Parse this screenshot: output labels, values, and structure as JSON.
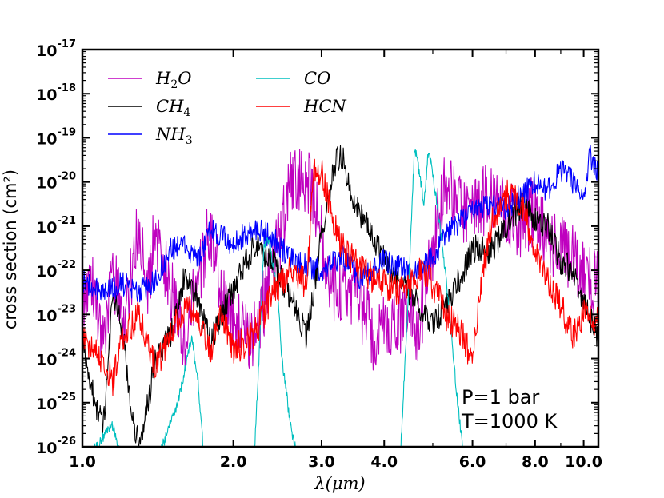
{
  "chart_data": {
    "type": "line",
    "title": "",
    "xlabel": "λ(μm)",
    "ylabel": "cross section (cm²)",
    "xscale": "log",
    "yscale": "log",
    "xlim": [
      1.0,
      10.7
    ],
    "ylim_exp": [
      -26,
      -17
    ],
    "x_ticks": [
      {
        "value": 1.0,
        "label": "1.0"
      },
      {
        "value": 2.0,
        "label": "2.0"
      },
      {
        "value": 3.0,
        "label": "3.0"
      },
      {
        "value": 4.0,
        "label": "4.0"
      },
      {
        "value": 6.0,
        "label": "6.0"
      },
      {
        "value": 8.0,
        "label": "8.0"
      },
      {
        "value": 10.0,
        "label": "10.0"
      }
    ],
    "y_ticks": [
      {
        "exp": -26,
        "base": "10",
        "sup": "-26"
      },
      {
        "exp": -25,
        "base": "10",
        "sup": "-25"
      },
      {
        "exp": -24,
        "base": "10",
        "sup": "-24"
      },
      {
        "exp": -23,
        "base": "10",
        "sup": "-23"
      },
      {
        "exp": -22,
        "base": "10",
        "sup": "-22"
      },
      {
        "exp": -21,
        "base": "10",
        "sup": "-21"
      },
      {
        "exp": -20,
        "base": "10",
        "sup": "-20"
      },
      {
        "exp": -19,
        "base": "10",
        "sup": "-19"
      },
      {
        "exp": -18,
        "base": "10",
        "sup": "-18"
      },
      {
        "exp": -17,
        "base": "10",
        "sup": "-17"
      }
    ],
    "series": [
      {
        "name": "H2O",
        "label": "H",
        "sub": "2",
        "suffix": "O",
        "color": "#bf00bf",
        "noise": 1.0,
        "points": [
          [
            1.0,
            -22.5
          ],
          [
            1.05,
            -22.3
          ],
          [
            1.1,
            -23.8
          ],
          [
            1.15,
            -22.0
          ],
          [
            1.2,
            -23.2
          ],
          [
            1.3,
            -21.0
          ],
          [
            1.35,
            -22.2
          ],
          [
            1.4,
            -21.2
          ],
          [
            1.5,
            -22.5
          ],
          [
            1.6,
            -23.5
          ],
          [
            1.8,
            -21.0
          ],
          [
            1.9,
            -22.5
          ],
          [
            2.0,
            -23.2
          ],
          [
            2.2,
            -23.5
          ],
          [
            2.4,
            -22.0
          ],
          [
            2.6,
            -20.0
          ],
          [
            2.75,
            -19.8
          ],
          [
            2.9,
            -20.3
          ],
          [
            3.1,
            -22.3
          ],
          [
            3.3,
            -22.6
          ],
          [
            3.5,
            -22.5
          ],
          [
            3.8,
            -23.5
          ],
          [
            4.1,
            -23.3
          ],
          [
            4.4,
            -23.0
          ],
          [
            4.7,
            -23.3
          ],
          [
            5.0,
            -21.5
          ],
          [
            5.3,
            -20.0
          ],
          [
            5.6,
            -20.5
          ],
          [
            6.0,
            -20.8
          ],
          [
            6.5,
            -20.2
          ],
          [
            7.0,
            -20.6
          ],
          [
            7.5,
            -21.0
          ],
          [
            8.0,
            -20.6
          ],
          [
            8.5,
            -21.5
          ],
          [
            9.0,
            -21.5
          ],
          [
            10.0,
            -22.0
          ],
          [
            10.7,
            -22.4
          ]
        ]
      },
      {
        "name": "CH4",
        "label": "CH",
        "sub": "4",
        "suffix": "",
        "color": "#000000",
        "noise": 0.4,
        "points": [
          [
            1.0,
            -23.5
          ],
          [
            1.05,
            -24.8
          ],
          [
            1.1,
            -25.6
          ],
          [
            1.15,
            -22.6
          ],
          [
            1.2,
            -23.3
          ],
          [
            1.25,
            -25.2
          ],
          [
            1.3,
            -26.0
          ],
          [
            1.4,
            -24.0
          ],
          [
            1.5,
            -23.5
          ],
          [
            1.6,
            -22.1
          ],
          [
            1.7,
            -22.6
          ],
          [
            1.8,
            -23.6
          ],
          [
            1.9,
            -23.0
          ],
          [
            2.0,
            -22.4
          ],
          [
            2.2,
            -21.4
          ],
          [
            2.4,
            -21.8
          ],
          [
            2.6,
            -22.6
          ],
          [
            2.8,
            -23.5
          ],
          [
            3.0,
            -21.2
          ],
          [
            3.2,
            -19.5
          ],
          [
            3.3,
            -19.4
          ],
          [
            3.5,
            -20.5
          ],
          [
            3.8,
            -21.2
          ],
          [
            4.0,
            -21.8
          ],
          [
            4.5,
            -22.5
          ],
          [
            5.0,
            -23.2
          ],
          [
            5.5,
            -22.5
          ],
          [
            6.0,
            -21.5
          ],
          [
            6.5,
            -21.6
          ],
          [
            7.0,
            -21.0
          ],
          [
            7.5,
            -20.5
          ],
          [
            8.0,
            -20.8
          ],
          [
            8.5,
            -21.0
          ],
          [
            9.0,
            -21.8
          ],
          [
            9.5,
            -22.0
          ],
          [
            10.0,
            -22.8
          ],
          [
            10.7,
            -23.5
          ]
        ]
      },
      {
        "name": "NH3",
        "label": "NH",
        "sub": "3",
        "suffix": "",
        "color": "#0000ff",
        "noise": 0.35,
        "points": [
          [
            1.0,
            -22.2
          ],
          [
            1.05,
            -22.4
          ],
          [
            1.1,
            -22.5
          ],
          [
            1.2,
            -22.3
          ],
          [
            1.3,
            -22.5
          ],
          [
            1.4,
            -22.2
          ],
          [
            1.5,
            -21.5
          ],
          [
            1.6,
            -21.4
          ],
          [
            1.7,
            -21.8
          ],
          [
            1.8,
            -21.1
          ],
          [
            2.0,
            -21.4
          ],
          [
            2.2,
            -21.0
          ],
          [
            2.4,
            -21.3
          ],
          [
            2.6,
            -21.7
          ],
          [
            2.8,
            -21.9
          ],
          [
            3.0,
            -22.0
          ],
          [
            3.3,
            -21.7
          ],
          [
            3.6,
            -22.2
          ],
          [
            4.0,
            -21.8
          ],
          [
            4.5,
            -22.0
          ],
          [
            5.0,
            -21.7
          ],
          [
            5.5,
            -21.0
          ],
          [
            6.0,
            -20.7
          ],
          [
            6.5,
            -20.5
          ],
          [
            7.0,
            -20.6
          ],
          [
            7.5,
            -20.3
          ],
          [
            8.0,
            -20.0
          ],
          [
            8.5,
            -20.2
          ],
          [
            9.0,
            -19.7
          ],
          [
            9.5,
            -20.0
          ],
          [
            10.0,
            -20.3
          ],
          [
            10.3,
            -19.4
          ],
          [
            10.7,
            -19.8
          ]
        ]
      },
      {
        "name": "CO",
        "label": "CO",
        "sub": "",
        "suffix": "",
        "color": "#00bfbf",
        "noise": 0.15,
        "points": [
          [
            1.0,
            -26.4
          ],
          [
            1.15,
            -25.5
          ],
          [
            1.2,
            -26.3
          ],
          [
            1.4,
            -26.4
          ],
          [
            1.55,
            -25.0
          ],
          [
            1.65,
            -23.5
          ],
          [
            1.7,
            -24.5
          ],
          [
            1.75,
            -26.3
          ],
          [
            2.2,
            -26.3
          ],
          [
            2.25,
            -24.0
          ],
          [
            2.3,
            -21.5
          ],
          [
            2.35,
            -21.3
          ],
          [
            2.45,
            -22.5
          ],
          [
            2.5,
            -24.0
          ],
          [
            2.6,
            -25.5
          ],
          [
            2.7,
            -26.4
          ],
          [
            4.3,
            -26.4
          ],
          [
            4.45,
            -23.0
          ],
          [
            4.6,
            -19.2
          ],
          [
            4.7,
            -19.8
          ],
          [
            4.8,
            -20.5
          ],
          [
            4.9,
            -19.3
          ],
          [
            5.0,
            -19.8
          ],
          [
            5.2,
            -21.2
          ],
          [
            5.4,
            -23.0
          ],
          [
            5.6,
            -25.0
          ],
          [
            5.8,
            -26.4
          ]
        ]
      },
      {
        "name": "HCN",
        "label": "HCN",
        "sub": "",
        "suffix": "",
        "color": "#ff0000",
        "noise": 0.45,
        "points": [
          [
            1.0,
            -23.6
          ],
          [
            1.05,
            -23.8
          ],
          [
            1.1,
            -24.0
          ],
          [
            1.15,
            -24.5
          ],
          [
            1.2,
            -23.5
          ],
          [
            1.3,
            -23.0
          ],
          [
            1.4,
            -24.2
          ],
          [
            1.5,
            -23.5
          ],
          [
            1.6,
            -22.8
          ],
          [
            1.7,
            -23.0
          ],
          [
            1.8,
            -23.8
          ],
          [
            1.9,
            -23.0
          ],
          [
            2.0,
            -23.8
          ],
          [
            2.2,
            -23.5
          ],
          [
            2.4,
            -22.5
          ],
          [
            2.6,
            -22.0
          ],
          [
            2.8,
            -22.3
          ],
          [
            2.9,
            -19.6
          ],
          [
            3.0,
            -19.8
          ],
          [
            3.1,
            -20.5
          ],
          [
            3.3,
            -21.5
          ],
          [
            3.6,
            -22.0
          ],
          [
            4.0,
            -22.3
          ],
          [
            4.4,
            -22.5
          ],
          [
            4.7,
            -22.0
          ],
          [
            5.0,
            -22.3
          ],
          [
            5.3,
            -23.0
          ],
          [
            5.6,
            -23.3
          ],
          [
            6.0,
            -24.0
          ],
          [
            6.3,
            -22.0
          ],
          [
            6.6,
            -20.8
          ],
          [
            7.0,
            -20.3
          ],
          [
            7.5,
            -20.5
          ],
          [
            8.0,
            -21.5
          ],
          [
            8.5,
            -22.2
          ],
          [
            9.0,
            -22.8
          ],
          [
            9.5,
            -23.5
          ],
          [
            10.0,
            -23.0
          ],
          [
            10.7,
            -23.2
          ]
        ]
      }
    ]
  },
  "legend": {
    "location": "upper-left",
    "columns": 2
  },
  "annotation": {
    "line1": "P=1 bar",
    "line2": "T=1000 K"
  }
}
